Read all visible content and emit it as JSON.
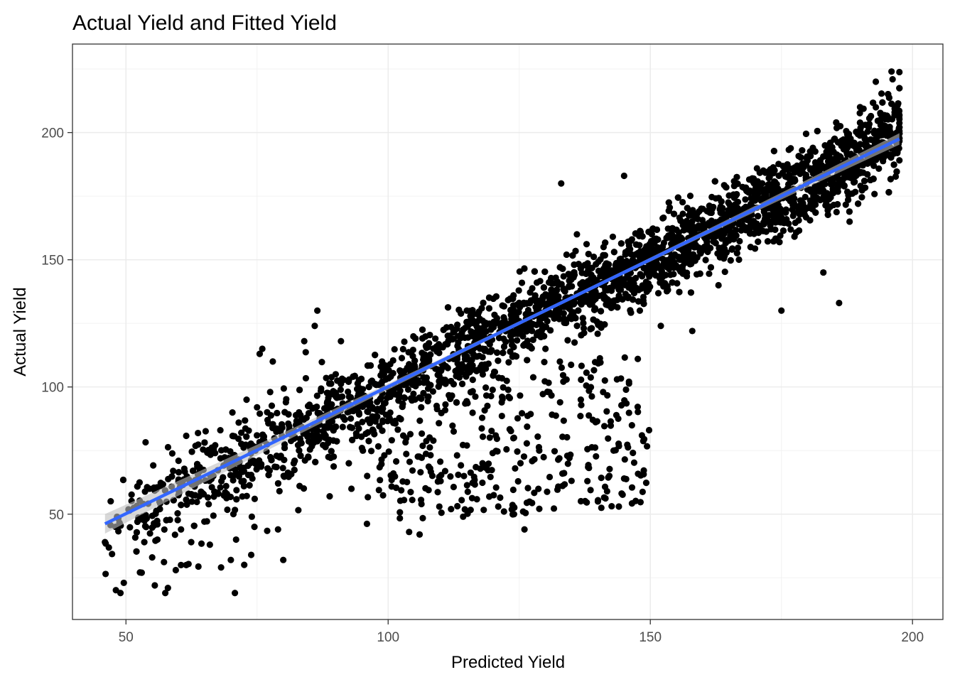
{
  "chart_data": {
    "type": "scatter",
    "title": "Actual Yield and Fitted Yield",
    "xlabel": "Predicted Yield",
    "ylabel": "Actual Yield",
    "xlim": [
      39.8,
      205.8
    ],
    "ylim": [
      8.6,
      234.8
    ],
    "x_ticks": [
      50,
      100,
      150,
      200
    ],
    "y_ticks": [
      50,
      100,
      150,
      200
    ],
    "grid": true,
    "legend": "none",
    "point_color": "#000000",
    "fit_line": {
      "method": "linear",
      "color": "#3366FF",
      "band_color": "#BEBEBE",
      "x": [
        46,
        197.5
      ],
      "y": [
        46.2,
        197.5
      ]
    },
    "point_count_approx": 4500,
    "points_description": "Dense cloud of observed (Predicted Yield, Actual Yield) pairs around the fitted line, spread roughly ±20, with a secondary low-lying cluster around x 100–150, y 40–100.",
    "points": [
      [
        46,
        39
      ],
      [
        48,
        45
      ],
      [
        49,
        45.5
      ],
      [
        51.5,
        52.5
      ],
      [
        53,
        27
      ],
      [
        53.5,
        39
      ],
      [
        54.5,
        60
      ],
      [
        55,
        33
      ],
      [
        55.5,
        22
      ],
      [
        56,
        46
      ],
      [
        56,
        40
      ],
      [
        57.5,
        19
      ],
      [
        58,
        21
      ],
      [
        59,
        67
      ],
      [
        59.5,
        28
      ],
      [
        60.5,
        44
      ],
      [
        60.5,
        30
      ],
      [
        61.5,
        30
      ],
      [
        64,
        63
      ],
      [
        64,
        57
      ],
      [
        66,
        38
      ],
      [
        67,
        74
      ],
      [
        68,
        83
      ],
      [
        70,
        32
      ],
      [
        71,
        40
      ],
      [
        71.5,
        86
      ],
      [
        72,
        82
      ],
      [
        72.5,
        61
      ],
      [
        73,
        95
      ],
      [
        74,
        49
      ],
      [
        74.5,
        45
      ],
      [
        75,
        92
      ],
      [
        75.5,
        113
      ],
      [
        76,
        115
      ],
      [
        77,
        87
      ],
      [
        77.5,
        98
      ],
      [
        78,
        110
      ],
      [
        79,
        44
      ],
      [
        80,
        32
      ],
      [
        80.5,
        94
      ],
      [
        81,
        82
      ],
      [
        82,
        70
      ],
      [
        83,
        90
      ],
      [
        84,
        118
      ],
      [
        85,
        93
      ],
      [
        86,
        124
      ],
      [
        86.5,
        130
      ],
      [
        88,
        80
      ],
      [
        90,
        105
      ],
      [
        91,
        118
      ],
      [
        92.5,
        70
      ],
      [
        93,
        60
      ],
      [
        95,
        76
      ],
      [
        96,
        65
      ],
      [
        97,
        92
      ],
      [
        99,
        106
      ],
      [
        101,
        66
      ],
      [
        104,
        43
      ],
      [
        106,
        42
      ],
      [
        107,
        110
      ],
      [
        108,
        68
      ],
      [
        109,
        119
      ],
      [
        110,
        63
      ],
      [
        112,
        52
      ],
      [
        115,
        130
      ],
      [
        118,
        70
      ],
      [
        121,
        53
      ],
      [
        124,
        50
      ],
      [
        126,
        44
      ],
      [
        127,
        128
      ],
      [
        130,
        115
      ],
      [
        133,
        180
      ],
      [
        136,
        160
      ],
      [
        138,
        63
      ],
      [
        140,
        55
      ],
      [
        141,
        98
      ],
      [
        143,
        75
      ],
      [
        144,
        53
      ],
      [
        145,
        183
      ],
      [
        148,
        130
      ],
      [
        150,
        145
      ],
      [
        152,
        124
      ],
      [
        155,
        158
      ],
      [
        158,
        122
      ],
      [
        160,
        170
      ],
      [
        163,
        140
      ],
      [
        166,
        179
      ],
      [
        170,
        175
      ],
      [
        173,
        162
      ],
      [
        175,
        130
      ],
      [
        178,
        187
      ],
      [
        181,
        194
      ],
      [
        183,
        145
      ],
      [
        186,
        133
      ],
      [
        188,
        165
      ],
      [
        190,
        210
      ],
      [
        193,
        220
      ],
      [
        196,
        224
      ],
      [
        197,
        200
      ]
    ]
  }
}
